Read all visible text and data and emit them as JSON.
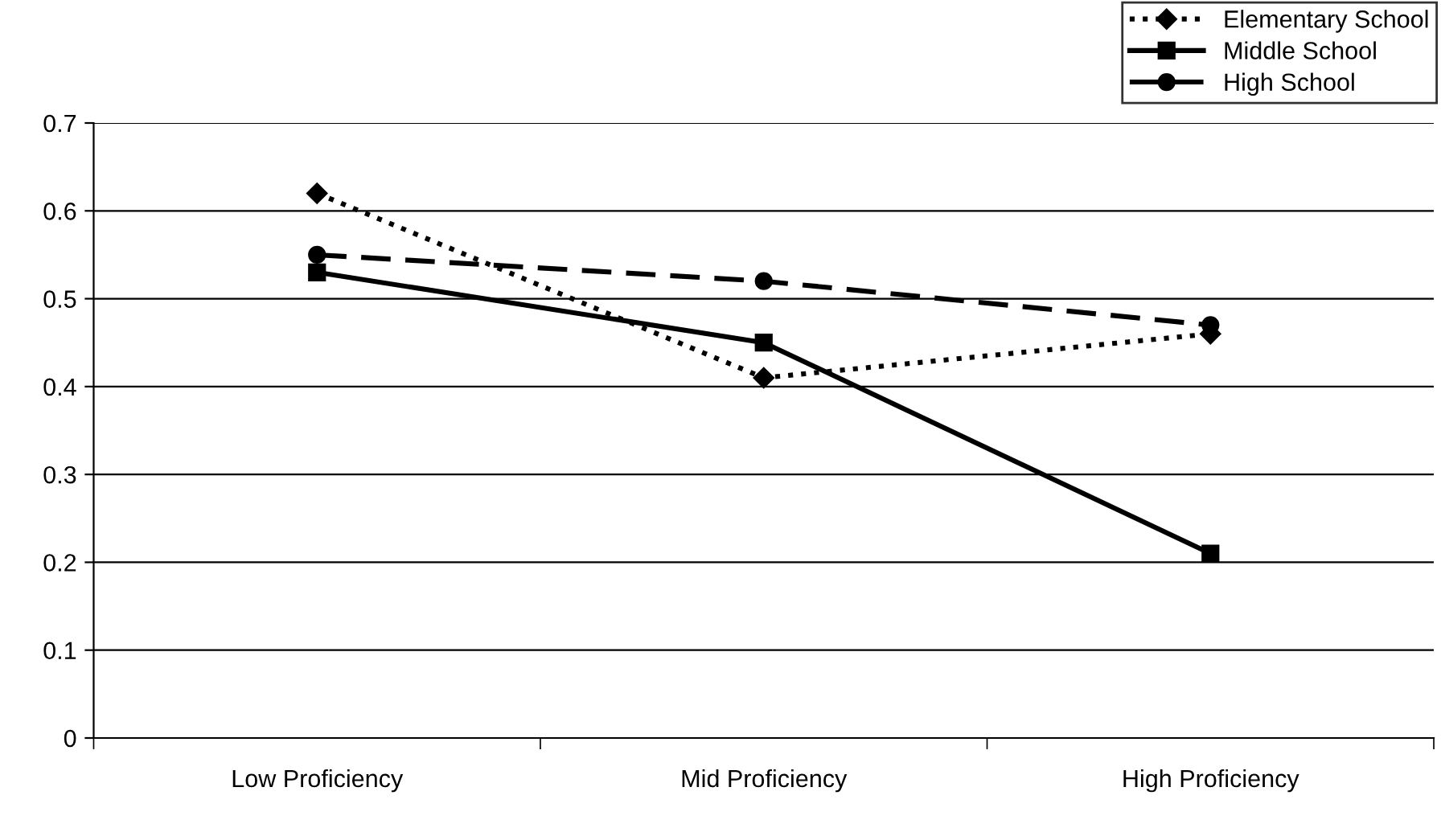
{
  "chart_data": {
    "type": "line",
    "categories": [
      "Low Proficiency",
      "Mid Proficiency",
      "High Proficiency"
    ],
    "series": [
      {
        "name": "Elementary School",
        "color": "#000000",
        "values": [
          0.62,
          0.41,
          0.46
        ],
        "marker": "diamond",
        "line_style": "dotted"
      },
      {
        "name": "Middle School",
        "color": "#000000",
        "values": [
          0.53,
          0.45,
          0.21
        ],
        "marker": "square",
        "line_style": "solid"
      },
      {
        "name": "High School",
        "color": "#000000",
        "values": [
          0.55,
          0.52,
          0.47
        ],
        "marker": "circle",
        "line_style": "dashed"
      }
    ],
    "ylim": [
      0,
      0.7
    ],
    "yticks": [
      {
        "value": 0,
        "label": "0"
      },
      0.1,
      0.2,
      0.3,
      0.4,
      0.5,
      0.6,
      0.7
    ],
    "grid": "y",
    "legend": "top right"
  }
}
